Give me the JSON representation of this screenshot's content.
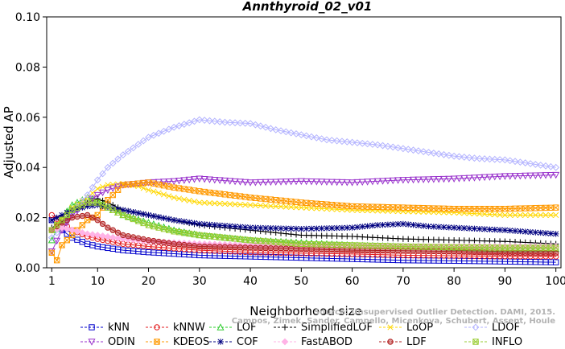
{
  "chart_data": {
    "type": "line",
    "title": "Annthyroid_02_v01",
    "xlabel": "Neighborhood size",
    "ylabel": "Adjusted AP",
    "xlim": [
      0,
      101
    ],
    "ylim": [
      0,
      0.1
    ],
    "x_ticks": [
      1,
      10,
      20,
      30,
      40,
      50,
      60,
      70,
      80,
      90,
      100
    ],
    "x_tick_labels": [
      "1",
      "10",
      "20",
      "30",
      "40",
      "50",
      "60",
      "70",
      "80",
      "90",
      "100"
    ],
    "y_ticks": [
      0,
      0.02,
      0.04,
      0.06,
      0.08,
      0.1
    ],
    "y_tick_labels": [
      "0.00",
      "0.02",
      "0.04",
      "0.06",
      "0.08",
      "0.10"
    ],
    "legend_position": "bottom",
    "watermark": [
      "Source: Unsupervised Outlier Detection. DAMI, 2015.",
      "Campos, Zimek, Sander, Campello, Micenkova, Schubert, Assent, Houle"
    ],
    "series": [
      {
        "name": "kNN",
        "color": "#0000cc",
        "marker": "square",
        "points": [
          [
            1,
            0.019
          ],
          [
            3,
            0.015
          ],
          [
            5,
            0.012
          ],
          [
            8,
            0.0095
          ],
          [
            10,
            0.0085
          ],
          [
            15,
            0.007
          ],
          [
            20,
            0.0062
          ],
          [
            30,
            0.005
          ],
          [
            40,
            0.0045
          ],
          [
            50,
            0.004
          ],
          [
            60,
            0.0035
          ],
          [
            70,
            0.003
          ],
          [
            80,
            0.0028
          ],
          [
            90,
            0.0025
          ],
          [
            100,
            0.0022
          ]
        ]
      },
      {
        "name": "kNNW",
        "color": "#e31a1c",
        "marker": "circle",
        "points": [
          [
            1,
            0.021
          ],
          [
            3,
            0.018
          ],
          [
            5,
            0.015
          ],
          [
            8,
            0.0125
          ],
          [
            10,
            0.0115
          ],
          [
            15,
            0.0095
          ],
          [
            20,
            0.0085
          ],
          [
            30,
            0.007
          ],
          [
            40,
            0.0062
          ],
          [
            50,
            0.0058
          ],
          [
            60,
            0.0055
          ],
          [
            70,
            0.005
          ],
          [
            80,
            0.0048
          ],
          [
            90,
            0.0046
          ],
          [
            100,
            0.0045
          ]
        ]
      },
      {
        "name": "LOF",
        "color": "#2ecc2e",
        "marker": "triangle-up",
        "points": [
          [
            1,
            0.011
          ],
          [
            3,
            0.02
          ],
          [
            5,
            0.025
          ],
          [
            8,
            0.028
          ],
          [
            10,
            0.027
          ],
          [
            12,
            0.024
          ],
          [
            15,
            0.021
          ],
          [
            20,
            0.018
          ],
          [
            25,
            0.015
          ],
          [
            30,
            0.013
          ],
          [
            40,
            0.011
          ],
          [
            50,
            0.01
          ],
          [
            60,
            0.009
          ],
          [
            70,
            0.0085
          ],
          [
            80,
            0.008
          ],
          [
            90,
            0.0075
          ],
          [
            100,
            0.0075
          ]
        ]
      },
      {
        "name": "SimplifiedLOF",
        "color": "#000000",
        "marker": "plus",
        "points": [
          [
            1,
            0.016
          ],
          [
            3,
            0.018
          ],
          [
            5,
            0.022
          ],
          [
            8,
            0.026
          ],
          [
            10,
            0.0275
          ],
          [
            12,
            0.026
          ],
          [
            15,
            0.023
          ],
          [
            20,
            0.021
          ],
          [
            25,
            0.019
          ],
          [
            30,
            0.017
          ],
          [
            40,
            0.015
          ],
          [
            50,
            0.013
          ],
          [
            60,
            0.0125
          ],
          [
            70,
            0.0115
          ],
          [
            80,
            0.011
          ],
          [
            90,
            0.0105
          ],
          [
            100,
            0.0095
          ]
        ]
      },
      {
        "name": "LoOP",
        "color": "#ffd700",
        "marker": "x",
        "points": [
          [
            1,
            0.015
          ],
          [
            3,
            0.02
          ],
          [
            5,
            0.024
          ],
          [
            8,
            0.028
          ],
          [
            10,
            0.0315
          ],
          [
            12,
            0.033
          ],
          [
            15,
            0.0335
          ],
          [
            18,
            0.0325
          ],
          [
            20,
            0.031
          ],
          [
            25,
            0.028
          ],
          [
            30,
            0.026
          ],
          [
            40,
            0.025
          ],
          [
            50,
            0.024
          ],
          [
            60,
            0.023
          ],
          [
            70,
            0.0225
          ],
          [
            80,
            0.022
          ],
          [
            90,
            0.021
          ],
          [
            100,
            0.021
          ]
        ]
      },
      {
        "name": "LDOF",
        "color": "#b3b3ff",
        "marker": "diamond",
        "points": [
          [
            1,
            0.012
          ],
          [
            3,
            0.016
          ],
          [
            5,
            0.022
          ],
          [
            8,
            0.029
          ],
          [
            10,
            0.035
          ],
          [
            12,
            0.04
          ],
          [
            15,
            0.045
          ],
          [
            20,
            0.052
          ],
          [
            25,
            0.056
          ],
          [
            30,
            0.059
          ],
          [
            35,
            0.058
          ],
          [
            40,
            0.0575
          ],
          [
            45,
            0.055
          ],
          [
            50,
            0.053
          ],
          [
            55,
            0.051
          ],
          [
            60,
            0.05
          ],
          [
            65,
            0.049
          ],
          [
            70,
            0.0475
          ],
          [
            75,
            0.046
          ],
          [
            80,
            0.0445
          ],
          [
            85,
            0.0435
          ],
          [
            90,
            0.043
          ],
          [
            95,
            0.0415
          ],
          [
            100,
            0.04
          ]
        ]
      },
      {
        "name": "ODIN",
        "color": "#9933cc",
        "marker": "triangle-down",
        "points": [
          [
            1,
            0.0065
          ],
          [
            3,
            0.015
          ],
          [
            5,
            0.021
          ],
          [
            8,
            0.026
          ],
          [
            10,
            0.029
          ],
          [
            12,
            0.031
          ],
          [
            15,
            0.033
          ],
          [
            20,
            0.034
          ],
          [
            25,
            0.0345
          ],
          [
            30,
            0.0355
          ],
          [
            40,
            0.034
          ],
          [
            50,
            0.0345
          ],
          [
            60,
            0.034
          ],
          [
            70,
            0.035
          ],
          [
            80,
            0.0355
          ],
          [
            90,
            0.0365
          ],
          [
            100,
            0.037
          ]
        ]
      },
      {
        "name": "KDEOS",
        "color": "#ff9900",
        "marker": "square-x",
        "points": [
          [
            1,
            0.006
          ],
          [
            2,
            0.003
          ],
          [
            3,
            0.009
          ],
          [
            5,
            0.013
          ],
          [
            8,
            0.019
          ],
          [
            10,
            0.021
          ],
          [
            12,
            0.027
          ],
          [
            15,
            0.033
          ],
          [
            20,
            0.034
          ],
          [
            25,
            0.032
          ],
          [
            30,
            0.0305
          ],
          [
            40,
            0.028
          ],
          [
            50,
            0.026
          ],
          [
            60,
            0.0245
          ],
          [
            70,
            0.024
          ],
          [
            80,
            0.0235
          ],
          [
            90,
            0.0235
          ],
          [
            100,
            0.024
          ]
        ]
      },
      {
        "name": "COF",
        "color": "#000080",
        "marker": "star",
        "points": [
          [
            1,
            0.019
          ],
          [
            3,
            0.021
          ],
          [
            5,
            0.023
          ],
          [
            8,
            0.0245
          ],
          [
            10,
            0.025
          ],
          [
            12,
            0.024
          ],
          [
            15,
            0.023
          ],
          [
            20,
            0.021
          ],
          [
            25,
            0.019
          ],
          [
            30,
            0.0175
          ],
          [
            40,
            0.016
          ],
          [
            50,
            0.0155
          ],
          [
            60,
            0.016
          ],
          [
            65,
            0.017
          ],
          [
            70,
            0.0175
          ],
          [
            75,
            0.0165
          ],
          [
            80,
            0.016
          ],
          [
            90,
            0.015
          ],
          [
            100,
            0.0135
          ]
        ]
      },
      {
        "name": "FastABOD",
        "color": "#ffb3e6",
        "marker": "diamond-filled",
        "points": [
          [
            1,
            0.015
          ],
          [
            3,
            0.016
          ],
          [
            5,
            0.015
          ],
          [
            8,
            0.0135
          ],
          [
            10,
            0.013
          ],
          [
            15,
            0.0115
          ],
          [
            20,
            0.0105
          ],
          [
            30,
            0.0095
          ],
          [
            40,
            0.009
          ],
          [
            50,
            0.0088
          ],
          [
            60,
            0.0086
          ],
          [
            70,
            0.0085
          ],
          [
            80,
            0.0085
          ],
          [
            90,
            0.0085
          ],
          [
            100,
            0.0085
          ]
        ]
      },
      {
        "name": "LDF",
        "color": "#b22222",
        "marker": "circle-dot",
        "points": [
          [
            1,
            0.015
          ],
          [
            3,
            0.018
          ],
          [
            5,
            0.02
          ],
          [
            8,
            0.021
          ],
          [
            10,
            0.019
          ],
          [
            12,
            0.016
          ],
          [
            15,
            0.013
          ],
          [
            20,
            0.011
          ],
          [
            25,
            0.0095
          ],
          [
            30,
            0.0085
          ],
          [
            40,
            0.008
          ],
          [
            50,
            0.0075
          ],
          [
            60,
            0.007
          ],
          [
            70,
            0.0068
          ],
          [
            80,
            0.0065
          ],
          [
            90,
            0.006
          ],
          [
            100,
            0.0058
          ]
        ]
      },
      {
        "name": "INFLO",
        "color": "#99cc33",
        "marker": "square-x",
        "points": [
          [
            1,
            0.015
          ],
          [
            3,
            0.019
          ],
          [
            5,
            0.023
          ],
          [
            8,
            0.026
          ],
          [
            10,
            0.026
          ],
          [
            12,
            0.024
          ],
          [
            15,
            0.021
          ],
          [
            20,
            0.017
          ],
          [
            25,
            0.0145
          ],
          [
            30,
            0.013
          ],
          [
            40,
            0.011
          ],
          [
            50,
            0.0095
          ],
          [
            60,
            0.009
          ],
          [
            70,
            0.0085
          ],
          [
            80,
            0.0082
          ],
          [
            90,
            0.008
          ],
          [
            100,
            0.008
          ]
        ]
      }
    ]
  }
}
